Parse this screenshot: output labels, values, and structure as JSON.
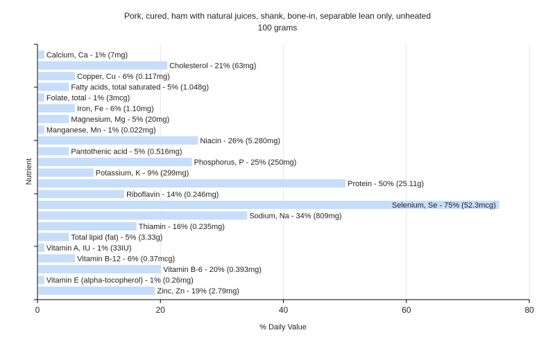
{
  "chart_data": {
    "type": "bar",
    "orientation": "horizontal",
    "title": "Pork, cured, ham with natural juices, shank, bone-in, separable lean only, unheated",
    "subtitle": "100 grams",
    "xlabel": "% Daily Value",
    "ylabel": "Nutrient",
    "xlim": [
      0,
      80
    ],
    "xticks": [
      0,
      20,
      40,
      60,
      80
    ],
    "grid": true,
    "bar_color": "#c6defa",
    "categories": [
      "Calcium, Ca",
      "Cholesterol",
      "Copper, Cu",
      "Fatty acids, total saturated",
      "Folate, total",
      "Iron, Fe",
      "Magnesium, Mg",
      "Manganese, Mn",
      "Niacin",
      "Pantothenic acid",
      "Phosphorus, P",
      "Potassium, K",
      "Protein",
      "Riboflavin",
      "Selenium, Se",
      "Sodium, Na",
      "Thiamin",
      "Total lipid (fat)",
      "Vitamin A, IU",
      "Vitamin B-12",
      "Vitamin B-6",
      "Vitamin E (alpha-tocopherol)",
      "Zinc, Zn"
    ],
    "values": [
      1,
      21,
      6,
      5,
      1,
      6,
      5,
      1,
      26,
      5,
      25,
      9,
      50,
      14,
      75,
      34,
      16,
      5,
      1,
      6,
      20,
      1,
      19
    ],
    "labels": [
      "Calcium, Ca - 1% (7mg)",
      "Cholesterol - 21% (63mg)",
      "Copper, Cu - 6% (0.117mg)",
      "Fatty acids, total saturated - 5% (1.048g)",
      "Folate, total - 1% (3mcg)",
      "Iron, Fe - 6% (1.10mg)",
      "Magnesium, Mg - 5% (20mg)",
      "Manganese, Mn - 1% (0.022mg)",
      "Niacin - 26% (5.280mg)",
      "Pantothenic acid - 5% (0.516mg)",
      "Phosphorus, P - 25% (250mg)",
      "Potassium, K - 9% (299mg)",
      "Protein - 50% (25.11g)",
      "Riboflavin - 14% (0.246mg)",
      "Selenium, Se - 75% (52.3mcg)",
      "Sodium, Na - 34% (809mg)",
      "Thiamin - 16% (0.235mg)",
      "Total lipid (fat) - 5% (3.33g)",
      "Vitamin A, IU - 1% (33IU)",
      "Vitamin B-12 - 6% (0.37mcg)",
      "Vitamin B-6 - 20% (0.393mg)",
      "Vitamin E (alpha-tocopherol) - 1% (0.26mg)",
      "Zinc, Zn - 19% (2.79mg)"
    ]
  }
}
